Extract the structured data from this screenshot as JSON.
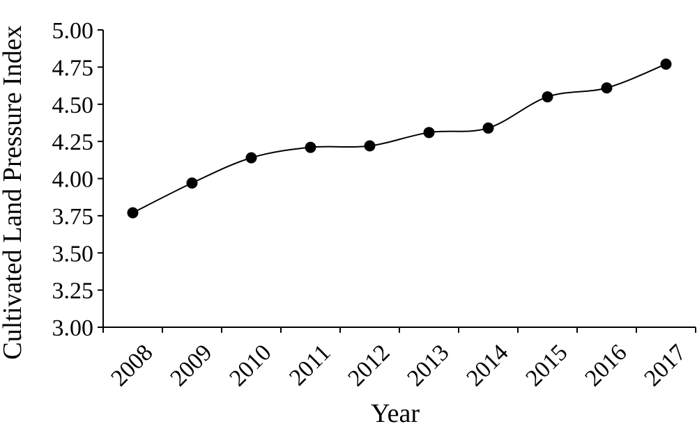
{
  "chart_data": {
    "type": "line",
    "title": "",
    "xlabel": "Year",
    "ylabel": "Cultivated Land Pressure Index",
    "categories": [
      "2008",
      "2009",
      "2010",
      "2011",
      "2012",
      "2013",
      "2014",
      "2015",
      "2016",
      "2017"
    ],
    "values": [
      3.77,
      3.97,
      4.14,
      4.21,
      4.22,
      4.31,
      4.34,
      4.55,
      4.61,
      4.77
    ],
    "ylim": [
      3.0,
      5.0
    ],
    "yticks": [
      "3.00",
      "3.25",
      "3.50",
      "3.75",
      "4.00",
      "4.25",
      "4.50",
      "4.75",
      "5.00"
    ],
    "grid": false,
    "line_style": "smooth",
    "marker": "filled-circle",
    "colors": {
      "line": "#000000",
      "marker": "#000000",
      "axis": "#000000"
    }
  }
}
